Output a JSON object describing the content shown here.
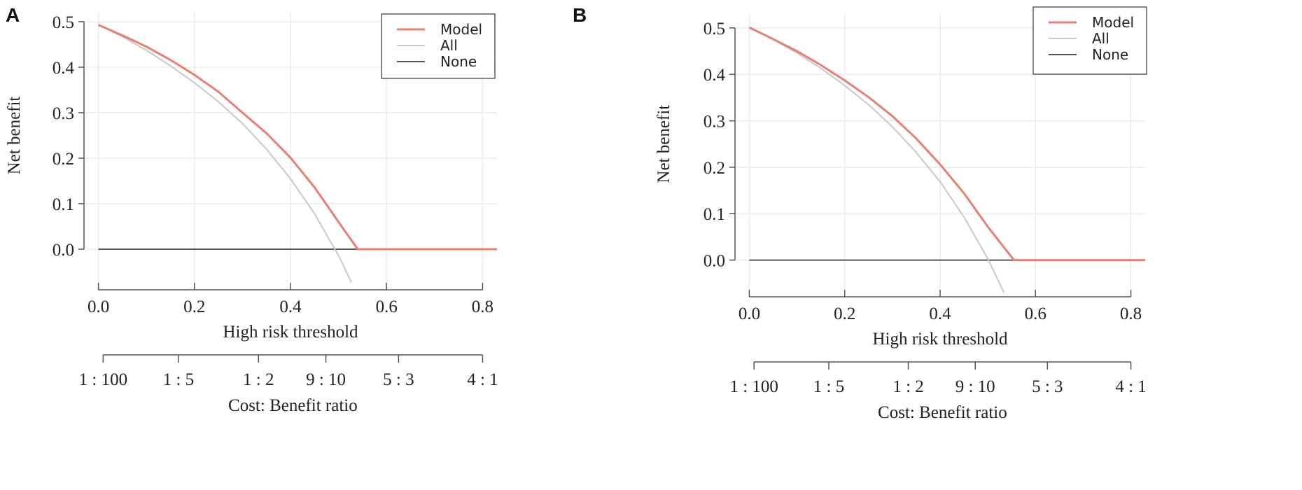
{
  "colors": {
    "model": "#e8806f",
    "all": "#c8c8c8",
    "none": "#555555",
    "grid": "#ebebeb",
    "axis": "#555555"
  },
  "chart_data": [
    {
      "panel_label": "A",
      "type": "line",
      "xlabel": "High risk threshold",
      "ylabel": "Net benefit",
      "secondary_xlabel": "Cost: Benefit ratio",
      "xlim": [
        -0.03,
        0.83
      ],
      "ylim": [
        -0.08,
        0.52
      ],
      "xticks": [
        0.0,
        0.2,
        0.4,
        0.6,
        0.8
      ],
      "xtick_labels": [
        "0.0",
        "0.2",
        "0.4",
        "0.6",
        "0.8"
      ],
      "yticks": [
        0.0,
        0.1,
        0.2,
        0.3,
        0.4,
        0.5
      ],
      "ytick_labels": [
        "0.0",
        "0.1",
        "0.2",
        "0.3",
        "0.4",
        "0.5"
      ],
      "cost_benefit_ticks": [
        {
          "label": "1 : 100",
          "threshold": 0.0099
        },
        {
          "label": "1 : 5",
          "threshold": 0.1667
        },
        {
          "label": "1 : 2",
          "threshold": 0.3333
        },
        {
          "label": "9 : 10",
          "threshold": 0.4737
        },
        {
          "label": "5 : 3",
          "threshold": 0.625
        },
        {
          "label": "4 : 1",
          "threshold": 0.8
        }
      ],
      "legend": {
        "position": "top-right",
        "entries": [
          "Model",
          "All",
          "None"
        ]
      },
      "grid": true,
      "series": [
        {
          "name": "Model",
          "x": [
            0.0,
            0.05,
            0.1,
            0.15,
            0.2,
            0.25,
            0.3,
            0.35,
            0.4,
            0.45,
            0.5,
            0.54,
            0.6,
            0.7,
            0.8,
            0.83
          ],
          "y": [
            0.493,
            0.47,
            0.445,
            0.416,
            0.383,
            0.346,
            0.3,
            0.255,
            0.201,
            0.136,
            0.06,
            0.0,
            0.0,
            0.0,
            0.0,
            0.0
          ]
        },
        {
          "name": "All",
          "x": [
            0.0,
            0.05,
            0.1,
            0.15,
            0.2,
            0.25,
            0.3,
            0.35,
            0.4,
            0.45,
            0.5,
            0.527
          ],
          "y": [
            0.493,
            0.467,
            0.437,
            0.403,
            0.366,
            0.324,
            0.276,
            0.22,
            0.155,
            0.078,
            -0.014,
            -0.073
          ]
        },
        {
          "name": "None",
          "x": [
            0.0,
            0.83
          ],
          "y": [
            0.0,
            0.0
          ]
        }
      ]
    },
    {
      "panel_label": "B",
      "type": "line",
      "xlabel": "High risk threshold",
      "ylabel": "Net benefit",
      "secondary_xlabel": "Cost: Benefit ratio",
      "xlim": [
        -0.03,
        0.83
      ],
      "ylim": [
        -0.07,
        0.53
      ],
      "xticks": [
        0.0,
        0.2,
        0.4,
        0.6,
        0.8
      ],
      "xtick_labels": [
        "0.0",
        "0.2",
        "0.4",
        "0.6",
        "0.8"
      ],
      "yticks": [
        0.0,
        0.1,
        0.2,
        0.3,
        0.4,
        0.5
      ],
      "ytick_labels": [
        "0.0",
        "0.1",
        "0.2",
        "0.3",
        "0.4",
        "0.5"
      ],
      "cost_benefit_ticks": [
        {
          "label": "1 : 100",
          "threshold": 0.0099
        },
        {
          "label": "1 : 5",
          "threshold": 0.1667
        },
        {
          "label": "1 : 2",
          "threshold": 0.3333
        },
        {
          "label": "9 : 10",
          "threshold": 0.4737
        },
        {
          "label": "5 : 3",
          "threshold": 0.625
        },
        {
          "label": "4 : 1",
          "threshold": 0.8
        }
      ],
      "legend": {
        "position": "top-right",
        "entries": [
          "Model",
          "All",
          "None"
        ]
      },
      "grid": true,
      "series": [
        {
          "name": "Model",
          "x": [
            0.0,
            0.05,
            0.1,
            0.15,
            0.2,
            0.25,
            0.3,
            0.35,
            0.4,
            0.45,
            0.5,
            0.555,
            0.6,
            0.7,
            0.8,
            0.83
          ],
          "y": [
            0.501,
            0.476,
            0.45,
            0.42,
            0.387,
            0.351,
            0.31,
            0.262,
            0.206,
            0.144,
            0.072,
            0.0,
            0.0,
            0.0,
            0.0,
            0.0
          ]
        },
        {
          "name": "All",
          "x": [
            0.0,
            0.05,
            0.1,
            0.15,
            0.2,
            0.25,
            0.3,
            0.35,
            0.4,
            0.45,
            0.5,
            0.534
          ],
          "y": [
            0.501,
            0.475,
            0.446,
            0.413,
            0.376,
            0.335,
            0.287,
            0.232,
            0.169,
            0.093,
            0.003,
            -0.07
          ]
        },
        {
          "name": "None",
          "x": [
            0.0,
            0.83
          ],
          "y": [
            0.0,
            0.0
          ]
        }
      ]
    }
  ]
}
